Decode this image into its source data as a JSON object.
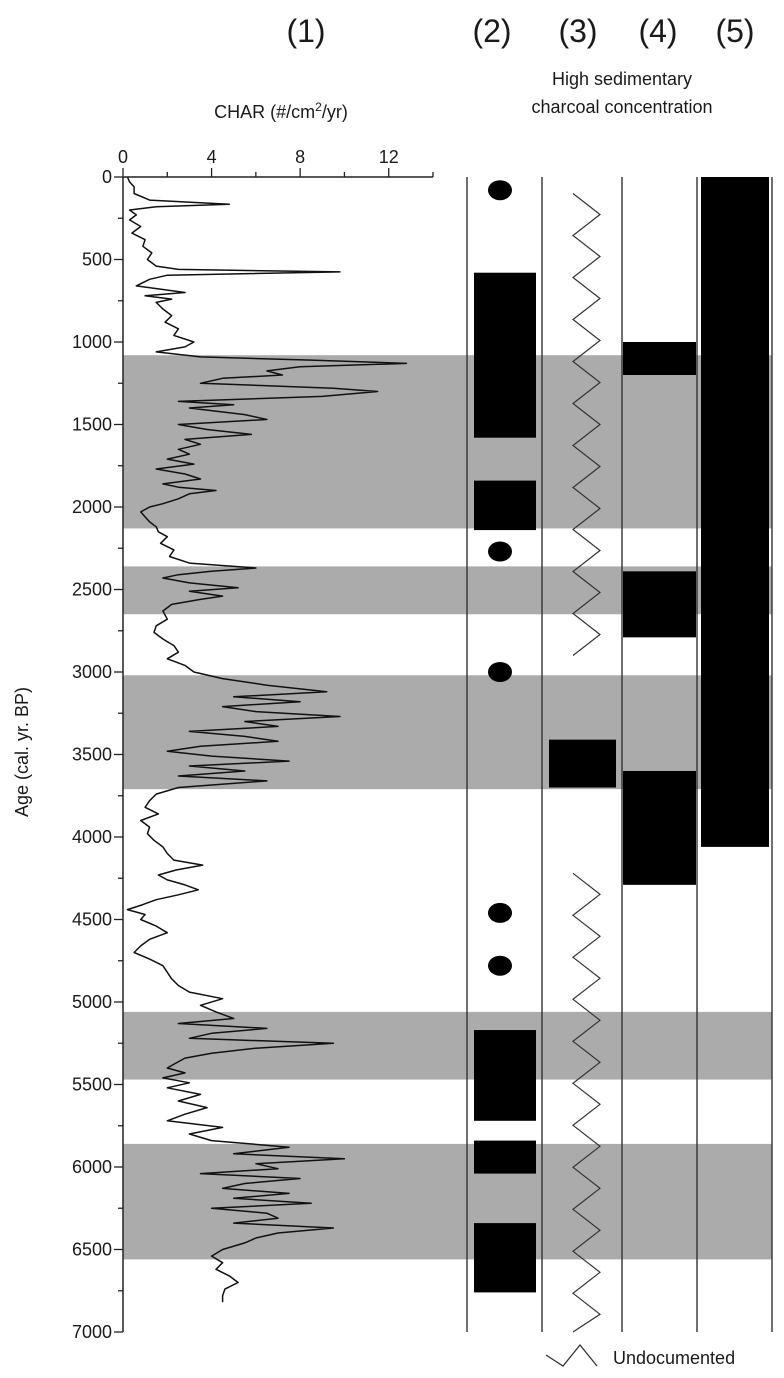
{
  "chart_data": {
    "type": "line",
    "columns": [
      {
        "id": "col1",
        "label": "(1)"
      },
      {
        "id": "col2",
        "label": "(2)"
      },
      {
        "id": "col3",
        "label": "(3)"
      },
      {
        "id": "col4",
        "label": "(4)"
      },
      {
        "id": "col5",
        "label": "(5)"
      }
    ],
    "header_line1": "High sedimentary",
    "header_line2": "charcoal concentration",
    "xlabel_prefix": "CHAR (#/cm",
    "xlabel_sup": "2",
    "xlabel_suffix": "/yr)",
    "ylabel": "Age (cal. yr. BP)",
    "xlim": [
      0,
      14
    ],
    "ylim": [
      0,
      7000
    ],
    "xticks": [
      0,
      4,
      8,
      12
    ],
    "yticks": [
      0,
      500,
      1000,
      1500,
      2000,
      2500,
      3000,
      3500,
      4000,
      4500,
      5000,
      5500,
      6000,
      6500,
      7000
    ],
    "legend_label": "Undocumented",
    "shaded_age_bands": [
      [
        1080,
        2130
      ],
      [
        2360,
        2650
      ],
      [
        3020,
        3710
      ],
      [
        5060,
        5470
      ],
      [
        5860,
        6560
      ]
    ],
    "char_series": {
      "ages": [
        0,
        30,
        60,
        100,
        140,
        165,
        180,
        200,
        230,
        260,
        300,
        340,
        380,
        420,
        460,
        500,
        540,
        560,
        575,
        595,
        620,
        660,
        700,
        720,
        740,
        760,
        800,
        840,
        880,
        920,
        960,
        1000,
        1030,
        1060,
        1090,
        1110,
        1130,
        1150,
        1175,
        1200,
        1220,
        1250,
        1280,
        1300,
        1330,
        1360,
        1380,
        1400,
        1440,
        1470,
        1500,
        1530,
        1560,
        1590,
        1620,
        1650,
        1680,
        1710,
        1740,
        1770,
        1800,
        1830,
        1860,
        1880,
        1900,
        1920,
        1950,
        1980,
        2000,
        2030,
        2060,
        2090,
        2120,
        2150,
        2180,
        2220,
        2260,
        2300,
        2340,
        2370,
        2390,
        2410,
        2430,
        2460,
        2490,
        2510,
        2540,
        2560,
        2590,
        2630,
        2680,
        2720,
        2760,
        2800,
        2840,
        2880,
        2920,
        2960,
        3000,
        3040,
        3080,
        3120,
        3150,
        3180,
        3210,
        3240,
        3270,
        3300,
        3330,
        3360,
        3390,
        3420,
        3450,
        3480,
        3510,
        3540,
        3570,
        3600,
        3630,
        3660,
        3700,
        3740,
        3780,
        3820,
        3860,
        3900,
        3940,
        3980,
        4020,
        4060,
        4100,
        4140,
        4170,
        4200,
        4230,
        4260,
        4290,
        4320,
        4350,
        4380,
        4410,
        4440,
        4470,
        4500,
        4540,
        4580,
        4620,
        4660,
        4700,
        4740,
        4780,
        4820,
        4860,
        4900,
        4940,
        4980,
        5020,
        5060,
        5100,
        5130,
        5160,
        5190,
        5220,
        5250,
        5280,
        5310,
        5340,
        5370,
        5400,
        5430,
        5460,
        5490,
        5520,
        5560,
        5600,
        5640,
        5680,
        5720,
        5760,
        5800,
        5840,
        5880,
        5920,
        5950,
        5980,
        6010,
        6040,
        6070,
        6100,
        6130,
        6160,
        6190,
        6220,
        6250,
        6280,
        6310,
        6340,
        6370,
        6400,
        6430,
        6460,
        6500,
        6540,
        6580,
        6620,
        6660,
        6700,
        6740,
        6780,
        6820,
        6860,
        6900,
        6940,
        6980
      ],
      "values": [
        0.2,
        0.3,
        0.5,
        0.5,
        1.2,
        4.8,
        1.5,
        0.3,
        0.6,
        0.3,
        0.8,
        0.4,
        1.0,
        0.9,
        1.3,
        1.1,
        1.5,
        2.5,
        9.8,
        2.0,
        1.2,
        0.6,
        2.8,
        1.0,
        2.2,
        1.5,
        1.8,
        2.2,
        1.9,
        2.5,
        2.3,
        3.2,
        2.8,
        1.5,
        3.5,
        8.5,
        12.8,
        8.0,
        6.5,
        7.2,
        4.5,
        3.5,
        9.5,
        11.5,
        9.0,
        2.5,
        5.0,
        3.0,
        5.5,
        6.5,
        2.5,
        3.8,
        5.8,
        2.8,
        3.5,
        2.5,
        3.0,
        2.0,
        3.2,
        1.5,
        2.8,
        3.5,
        1.8,
        2.5,
        4.2,
        3.0,
        2.5,
        1.8,
        1.2,
        0.8,
        1.0,
        1.2,
        1.5,
        1.6,
        2.0,
        1.7,
        2.3,
        2.1,
        3.0,
        6.0,
        4.0,
        2.5,
        1.8,
        3.0,
        5.2,
        3.0,
        4.5,
        3.5,
        2.2,
        1.8,
        2.0,
        1.5,
        1.4,
        1.8,
        2.3,
        2.5,
        2.0,
        2.8,
        3.2,
        4.5,
        6.5,
        9.2,
        5.0,
        8.0,
        4.5,
        6.0,
        9.8,
        5.5,
        7.0,
        3.0,
        5.5,
        7.0,
        3.5,
        2.0,
        4.0,
        7.5,
        3.0,
        5.5,
        2.5,
        6.5,
        2.5,
        1.5,
        1.2,
        1.0,
        1.6,
        0.8,
        1.2,
        1.1,
        1.4,
        1.8,
        2.0,
        2.3,
        3.6,
        2.4,
        1.6,
        2.0,
        2.8,
        3.4,
        2.5,
        1.5,
        0.9,
        0.2,
        1.0,
        0.8,
        1.5,
        2.0,
        1.2,
        0.8,
        0.5,
        1.2,
        1.8,
        2.0,
        2.2,
        2.5,
        3.0,
        4.5,
        3.5,
        4.2,
        5.0,
        2.5,
        6.5,
        4.0,
        3.0,
        9.5,
        6.0,
        4.0,
        2.8,
        2.4,
        2.0,
        2.8,
        1.8,
        3.0,
        2.0,
        3.5,
        2.5,
        3.8,
        2.8,
        2.0,
        4.5,
        3.0,
        4.0,
        7.5,
        5.0,
        10.0,
        6.0,
        7.0,
        3.5,
        8.0,
        5.5,
        4.5,
        7.5,
        5.0,
        8.5,
        4.0,
        6.5,
        7.0,
        5.0,
        9.5,
        7.0,
        6.0,
        5.5,
        4.5,
        4.0,
        4.5,
        4.2,
        4.8,
        5.2,
        4.6,
        4.5,
        4.5
      ]
    },
    "bars_col2": [
      [
        580,
        1580
      ],
      [
        1840,
        2140
      ],
      [
        5170,
        5720
      ],
      [
        5840,
        6040
      ],
      [
        6340,
        6760
      ]
    ],
    "dots_col2": [
      80,
      2270,
      3000,
      4460,
      4780
    ],
    "bars_col3": [
      [
        3410,
        3700
      ]
    ],
    "undoc_col3": [
      [
        100,
        2900
      ],
      [
        4220,
        7000
      ]
    ],
    "bars_col4": [
      [
        1000,
        1200
      ],
      [
        2390,
        2790
      ],
      [
        3600,
        4290
      ]
    ],
    "bars_col5": [
      [
        0,
        4060
      ]
    ]
  }
}
